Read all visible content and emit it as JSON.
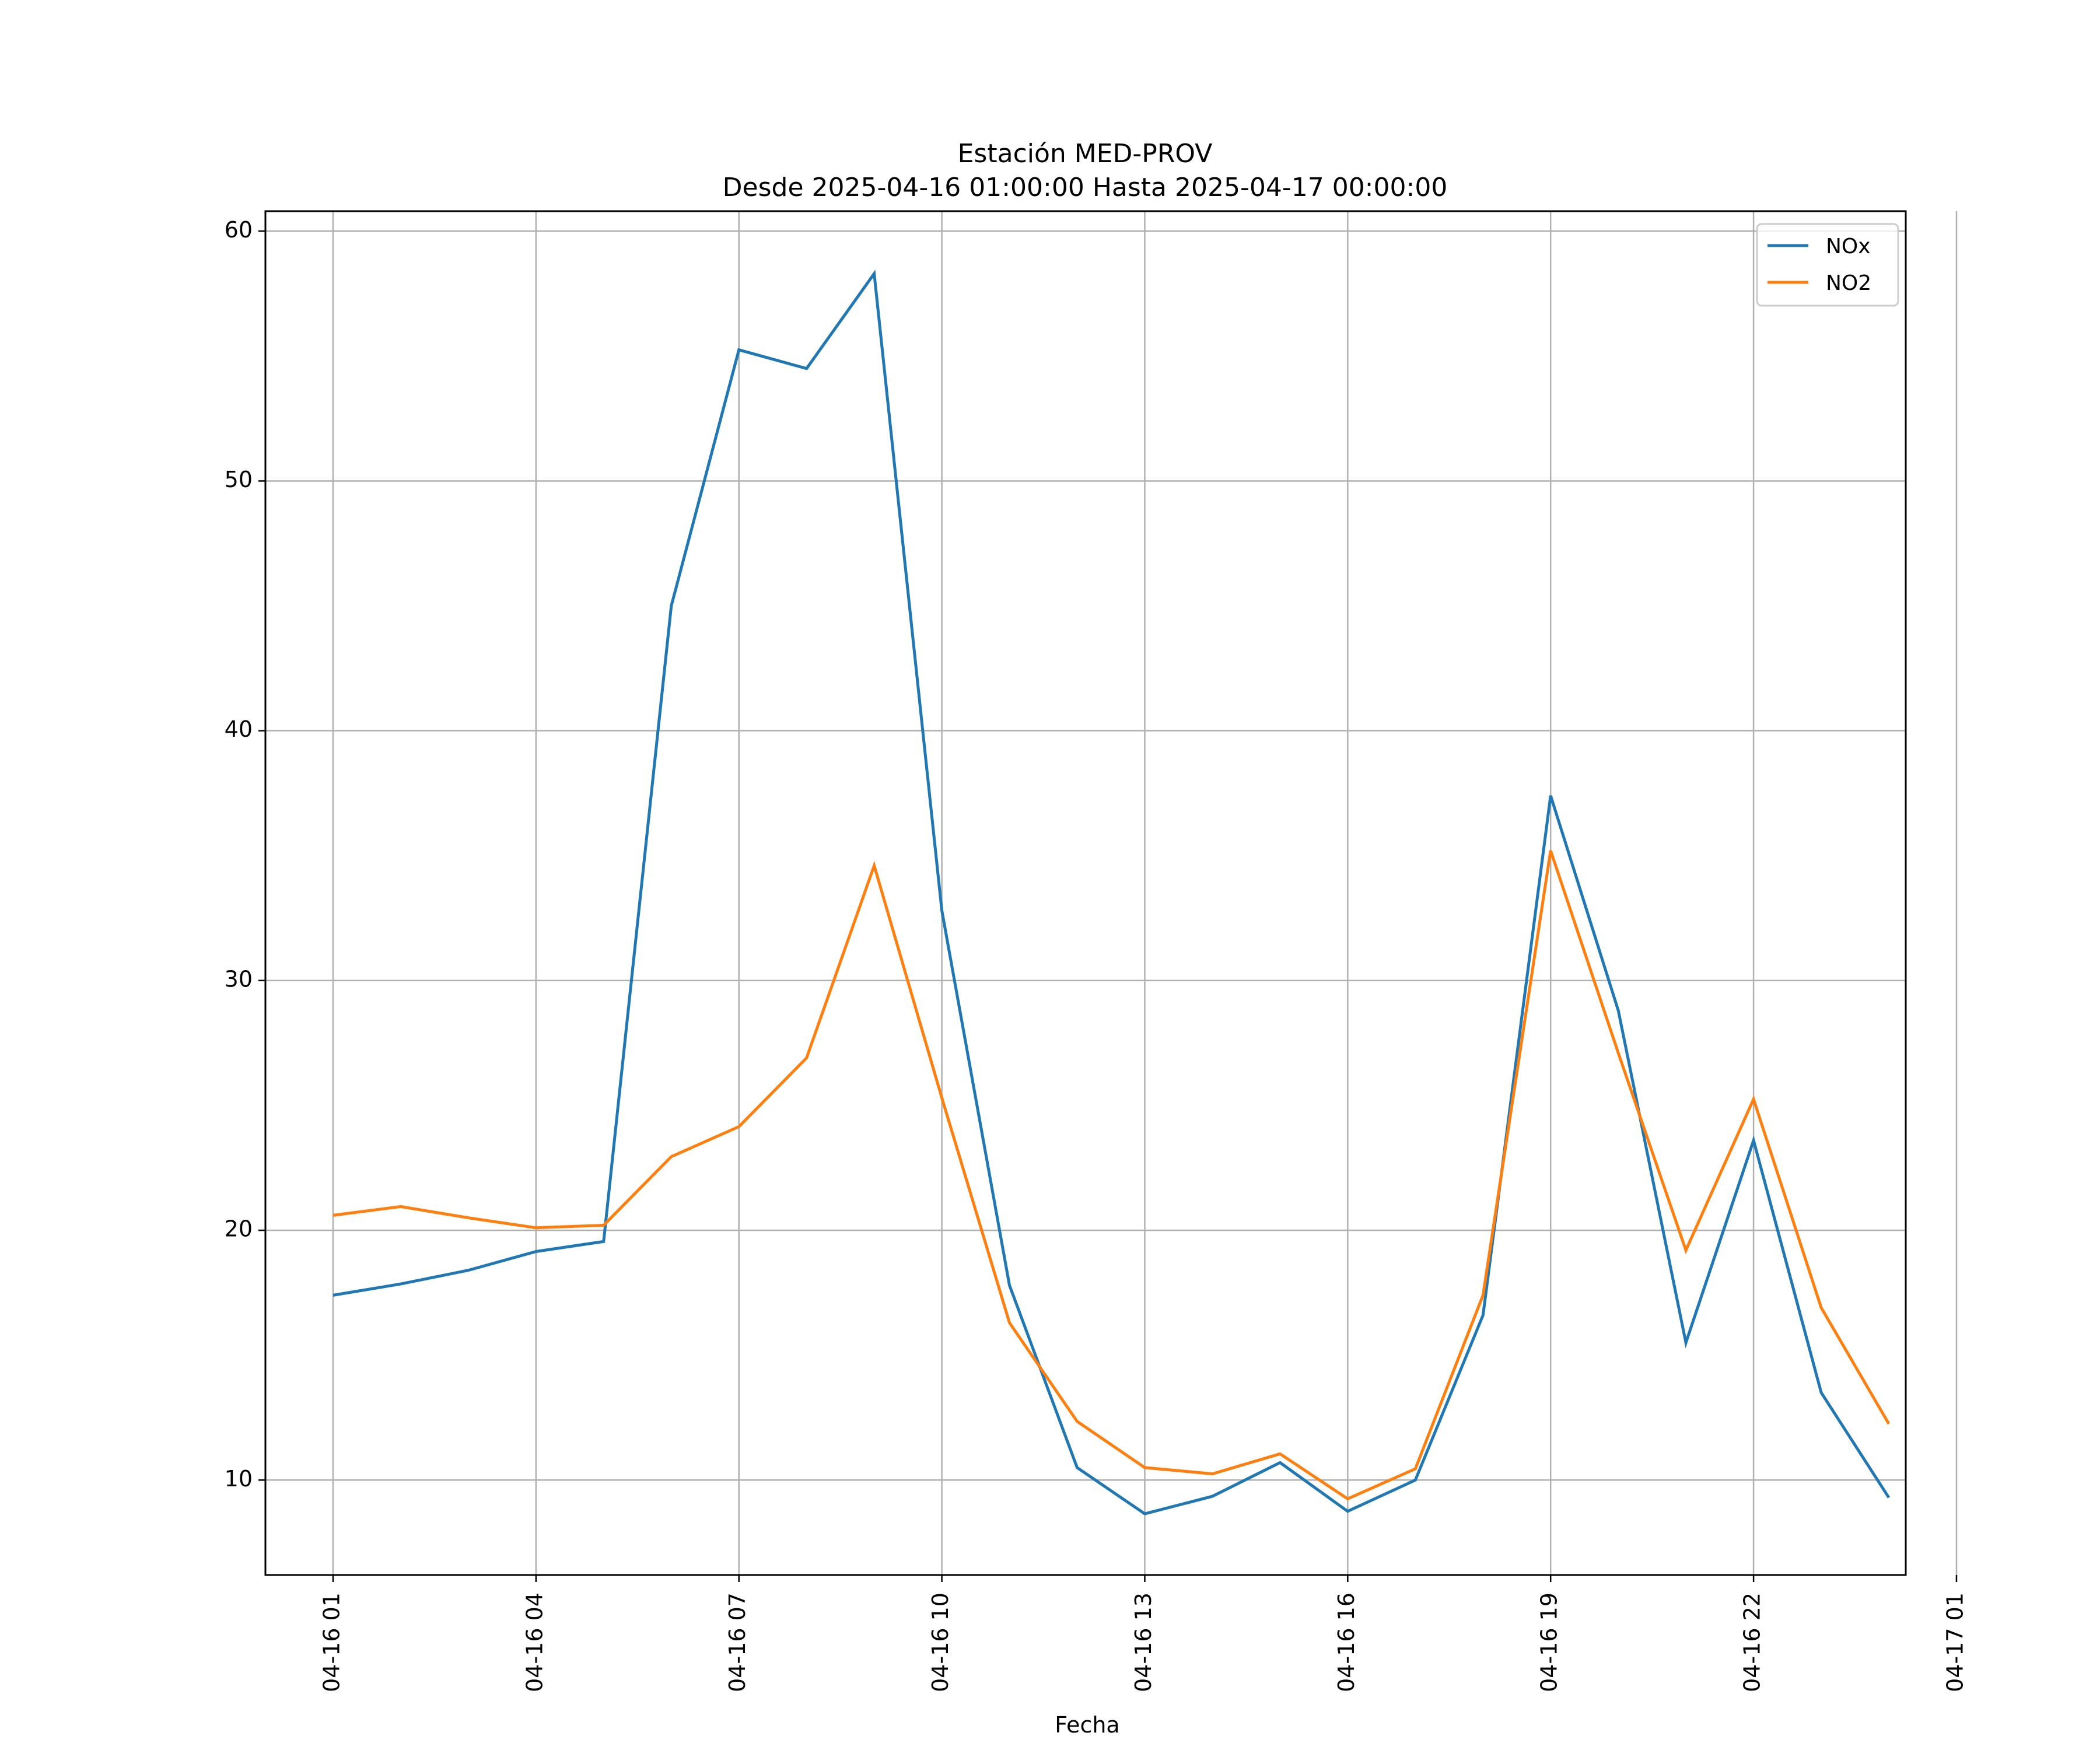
{
  "chart_data": {
    "type": "line",
    "title": "Estación MED-PROV",
    "subtitle": "Desde 2025-04-16 01:00:00 Hasta 2025-04-17 00:00:00",
    "xlabel": "Fecha",
    "ylabel": "",
    "x": [
      "04-16 01:00",
      "04-16 02:00",
      "04-16 03:00",
      "04-16 04:00",
      "04-16 05:00",
      "04-16 06:00",
      "04-16 07:00",
      "04-16 08:00",
      "04-16 09:00",
      "04-16 10:00",
      "04-16 11:00",
      "04-16 12:00",
      "04-16 13:00",
      "04-16 14:00",
      "04-16 15:00",
      "04-16 16:00",
      "04-16 17:00",
      "04-16 18:00",
      "04-16 19:00",
      "04-16 20:00",
      "04-16 21:00",
      "04-16 22:00",
      "04-16 23:00",
      "04-17 00:00"
    ],
    "series": [
      {
        "name": "NOx",
        "color": "#1f77b4",
        "values": [
          17.4,
          17.85,
          18.4,
          19.15,
          19.55,
          45.0,
          55.25,
          54.5,
          58.3,
          32.8,
          17.8,
          10.5,
          8.65,
          9.35,
          10.7,
          8.75,
          10.0,
          16.6,
          37.4,
          28.8,
          15.5,
          23.6,
          13.5,
          9.3
        ]
      },
      {
        "name": "NO2",
        "color": "#ff7f0e",
        "values": [
          20.6,
          20.95,
          20.5,
          20.1,
          20.2,
          22.95,
          24.15,
          26.9,
          34.6,
          25.3,
          16.3,
          12.35,
          10.5,
          10.25,
          11.05,
          9.25,
          10.45,
          17.4,
          35.2,
          27.1,
          19.2,
          25.25,
          16.9,
          12.25
        ]
      }
    ],
    "x_ticks": [
      "04-16 01",
      "04-16 04",
      "04-16 07",
      "04-16 10",
      "04-16 13",
      "04-16 16",
      "04-16 19",
      "04-16 22",
      "04-17 01"
    ],
    "y_ticks": [
      10,
      20,
      30,
      40,
      50,
      60
    ],
    "ylim": [
      6.2,
      60.8
    ],
    "xlim": [
      "04-16 00:00",
      "04-17 00:15"
    ],
    "grid": true,
    "legend_position": "top-right"
  }
}
